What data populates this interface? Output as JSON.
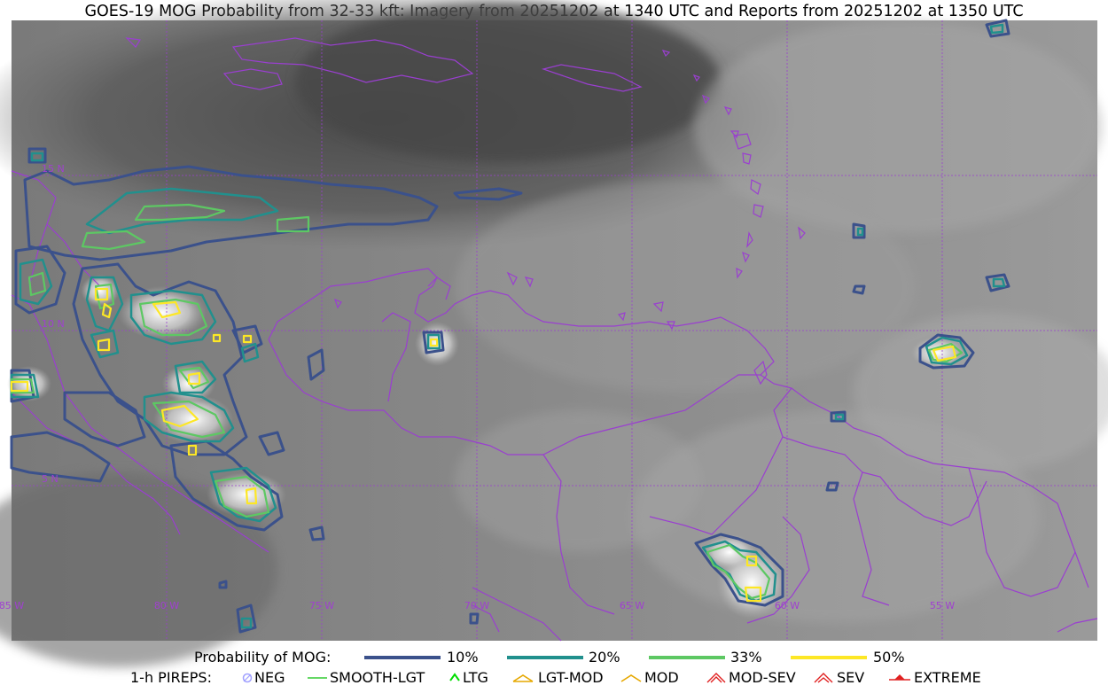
{
  "title": "GOES-19 MOG Probability from 32-33 kft: Imagery from 20251202 at 1340 UTC and Reports from 20251202 at 1350 UTC",
  "map": {
    "longitude_labels": [
      "85 W",
      "80 W",
      "75 W",
      "70 W",
      "65 W",
      "60 W",
      "55 W"
    ],
    "latitude_labels": [
      "15 N",
      "10 N",
      "5 N"
    ],
    "colors": {
      "grid": "#9a3fd0",
      "borders": "#9a3fd0",
      "prob_10": "#3b518b",
      "prob_20": "#21908d",
      "prob_33": "#5dc863",
      "prob_50": "#fde725"
    }
  },
  "legend": {
    "probability": {
      "label": "Probability of MOG:",
      "items": [
        {
          "label": "10%",
          "color": "#3b518b"
        },
        {
          "label": "20%",
          "color": "#21908d"
        },
        {
          "label": "33%",
          "color": "#5dc863"
        },
        {
          "label": "50%",
          "color": "#fde725"
        }
      ]
    },
    "pireps": {
      "label": "1-h PIREPS:",
      "items": [
        {
          "label": "NEG",
          "icon": "neg-icon",
          "color": "#a0a0ff"
        },
        {
          "label": "SMOOTH-LGT",
          "icon": "smooth-lgt-icon",
          "color": "#33cc33"
        },
        {
          "label": "LTG",
          "icon": "ltg-icon",
          "color": "#00dd00"
        },
        {
          "label": "LGT-MOD",
          "icon": "lgt-mod-icon",
          "color": "#e6a800"
        },
        {
          "label": "MOD",
          "icon": "mod-icon",
          "color": "#e6a800"
        },
        {
          "label": "MOD-SEV",
          "icon": "mod-sev-icon",
          "color": "#e02020"
        },
        {
          "label": "SEV",
          "icon": "sev-icon",
          "color": "#e02020"
        },
        {
          "label": "EXTREME",
          "icon": "extreme-icon",
          "color": "#e02020"
        }
      ]
    }
  }
}
